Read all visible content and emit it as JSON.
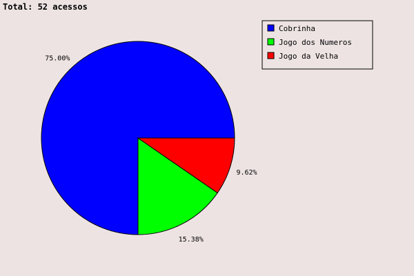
{
  "chart_data": {
    "type": "pie",
    "title": "Total: 52 acessos",
    "categories": [
      "Cobrinha",
      "Jogo dos Numeros",
      "Jogo da Velha"
    ],
    "values": [
      39,
      8,
      5
    ],
    "percent_labels": [
      "75.00%",
      "15.38%",
      "9.62%"
    ],
    "colors": [
      "#0000ff",
      "#00ff00",
      "#ff0000"
    ],
    "legend_position": "top-right",
    "start_angle_deg": 0,
    "direction": "counterclockwise"
  }
}
